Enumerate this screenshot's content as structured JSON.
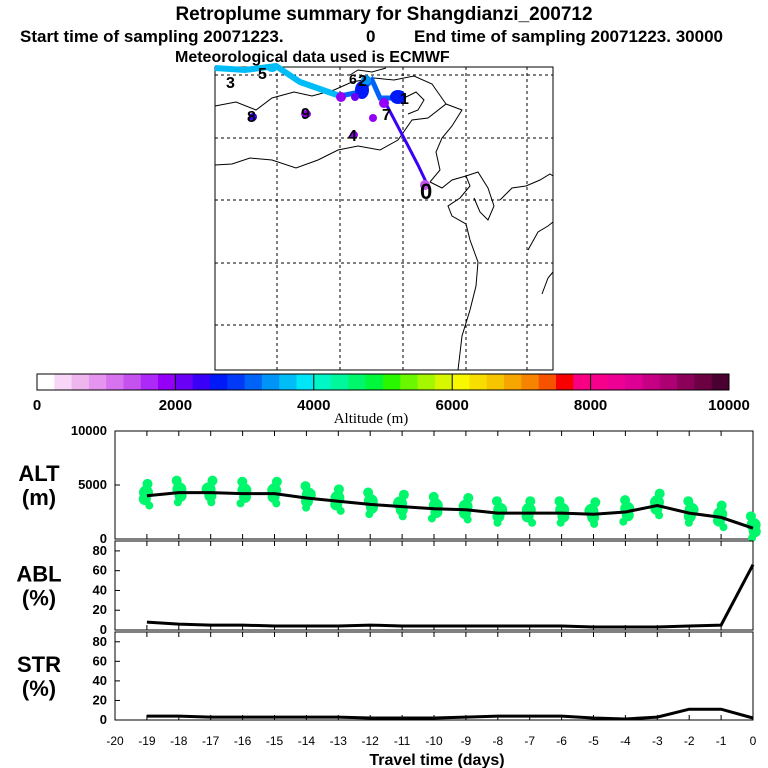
{
  "header": {
    "title": "Retroplume summary for Shangdianzi_200712",
    "start_label": "Start time of sampling 20071223.",
    "start_value": "0",
    "end_label": "End time of sampling 20071223. 30000",
    "met_line": "Meteorological data used is ECMWF"
  },
  "colorbar": {
    "ticks": [
      "0",
      "2000",
      "4000",
      "6000",
      "8000",
      "10000"
    ],
    "label": "Altitude (m)",
    "colors": [
      "#ffffff",
      "#f7d6f7",
      "#efb5ef",
      "#e694ef",
      "#d873ef",
      "#c552ef",
      "#ad29f7",
      "#9400f7",
      "#6b00f7",
      "#3a00f7",
      "#0019f7",
      "#003af7",
      "#0063f7",
      "#0094f7",
      "#00bdf7",
      "#00e6f7",
      "#00f7c5",
      "#00f79c",
      "#00f76b",
      "#00f73a",
      "#29f700",
      "#6bf700",
      "#a5f700",
      "#d6f700",
      "#f7f700",
      "#f7de00",
      "#f7c500",
      "#f7a500",
      "#f78400",
      "#f75200",
      "#f70000",
      "#f70084",
      "#f7008c",
      "#ef0094",
      "#de0094",
      "#c50084",
      "#ad0073",
      "#8c005a",
      "#6b0042",
      "#4a0031"
    ]
  },
  "map": {
    "trajectory_labels": [
      "0",
      "1",
      "2",
      "3",
      "4",
      "5",
      "6",
      "7",
      "8",
      "9"
    ]
  },
  "chart_data": [
    {
      "type": "line",
      "name": "ALT",
      "panel_label_line1": "ALT",
      "panel_label_line2": "(m)",
      "ylim": [
        0,
        10000
      ],
      "yticks": [
        "10000",
        "5000",
        "0"
      ],
      "x": [
        -19,
        -18,
        -17,
        -16,
        -15,
        -14,
        -13,
        -12,
        -11,
        -10,
        -9,
        -8,
        -7,
        -6,
        -5,
        -4,
        -3,
        -2,
        -1,
        0
      ],
      "values": [
        4000,
        4300,
        4300,
        4200,
        4200,
        3800,
        3500,
        3200,
        3000,
        2800,
        2700,
        2400,
        2400,
        2400,
        2300,
        2500,
        3100,
        2400,
        2000,
        1000
      ],
      "cluster_color": "#00f76b"
    },
    {
      "type": "line",
      "name": "ABL",
      "panel_label_line1": "ABL",
      "panel_label_line2": "(%)",
      "ylim": [
        0,
        90
      ],
      "yticks": [
        "80",
        "60",
        "40",
        "20",
        "0"
      ],
      "x": [
        -19,
        -18,
        -17,
        -16,
        -15,
        -14,
        -13,
        -12,
        -11,
        -10,
        -9,
        -8,
        -7,
        -6,
        -5,
        -4,
        -3,
        -2,
        -1,
        0
      ],
      "values": [
        8,
        6,
        5,
        5,
        4,
        4,
        4,
        5,
        4,
        4,
        4,
        4,
        4,
        4,
        3,
        3,
        3,
        4,
        5,
        66
      ]
    },
    {
      "type": "line",
      "name": "STR",
      "panel_label_line1": "STR",
      "panel_label_line2": "(%)",
      "ylim": [
        0,
        90
      ],
      "yticks": [
        "80",
        "60",
        "40",
        "20",
        "0"
      ],
      "x": [
        -19,
        -18,
        -17,
        -16,
        -15,
        -14,
        -13,
        -12,
        -11,
        -10,
        -9,
        -8,
        -7,
        -6,
        -5,
        -4,
        -3,
        -2,
        -1,
        0
      ],
      "values": [
        4,
        4,
        3,
        3,
        3,
        3,
        3,
        2,
        2,
        2,
        3,
        4,
        4,
        4,
        2,
        1,
        3,
        11,
        11,
        2
      ]
    }
  ],
  "xaxis": {
    "ticks": [
      "-20",
      "-19",
      "-18",
      "-17",
      "-16",
      "-15",
      "-14",
      "-13",
      "-12",
      "-11",
      "-10",
      "-9",
      "-8",
      "-7",
      "-6",
      "-5",
      "-4",
      "-3",
      "-2",
      "-1",
      "0"
    ],
    "label": "Travel time (days)"
  }
}
